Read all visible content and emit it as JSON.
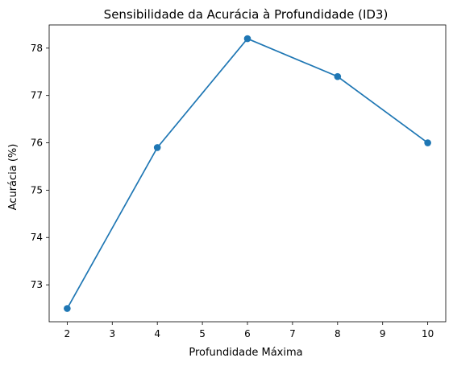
{
  "chart_data": {
    "type": "line",
    "title": "Sensibilidade da Acurácia à Profundidade (ID3)",
    "xlabel": "Profundidade Máxima",
    "ylabel": "Acurácia (%)",
    "x": [
      2,
      4,
      6,
      8,
      10
    ],
    "series": [
      {
        "values": [
          72.5,
          75.9,
          78.2,
          77.4,
          76.0
        ]
      }
    ],
    "xlim": [
      1.6,
      10.4
    ],
    "ylim": [
      72.22,
      78.49
    ],
    "xticks": [
      2,
      3,
      4,
      5,
      6,
      7,
      8,
      9,
      10
    ],
    "yticks": [
      73,
      74,
      75,
      76,
      77,
      78
    ],
    "markers": true,
    "grid": false,
    "color": "#1f77b4"
  }
}
